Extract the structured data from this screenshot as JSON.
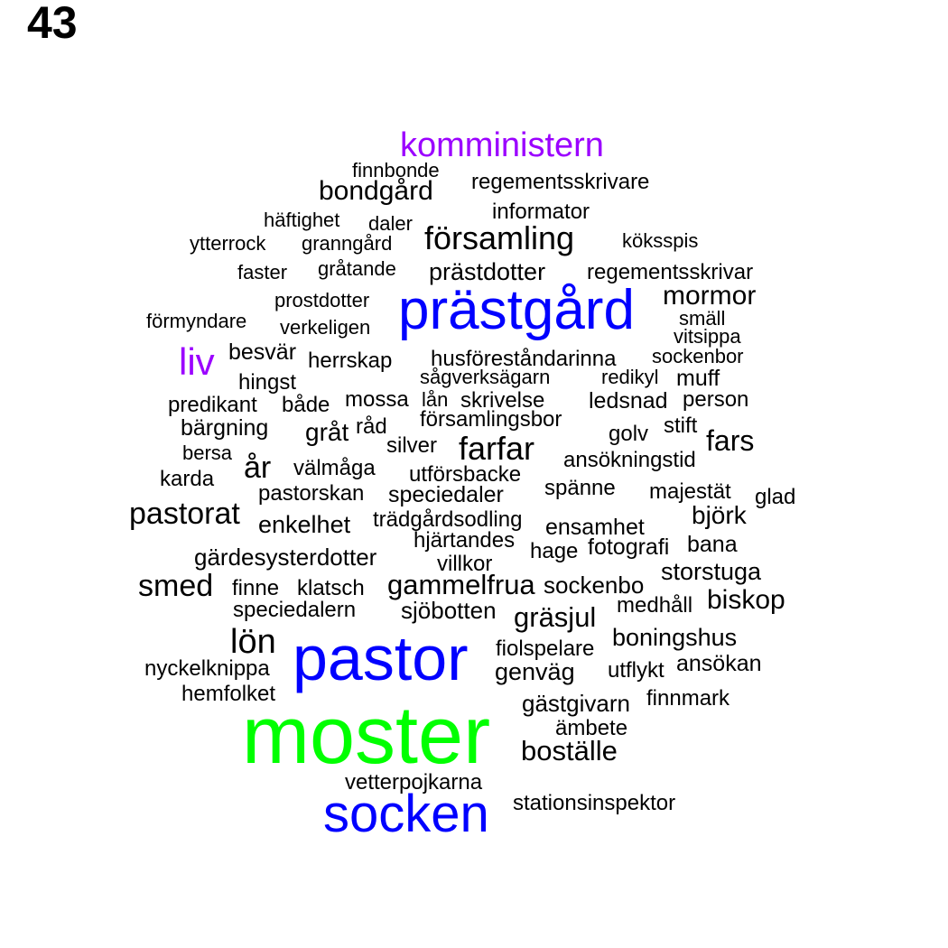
{
  "page_number": "43",
  "colors": {
    "blue": "#0000ff",
    "purple": "#9b00ff",
    "green": "#00ff00",
    "black": "#000000"
  },
  "words": [
    "komministern",
    "finnbonde",
    "regementsskrivare",
    "bondgård",
    "informator",
    "häftighet",
    "daler",
    "ytterrock",
    "granngård",
    "församling",
    "köksspis",
    "faster",
    "gråtande",
    "prästdotter",
    "regementsskrivar",
    "prostdotter",
    "prästgård",
    "mormor",
    "förmyndare",
    "verkeligen",
    "smäll",
    "vitsippa",
    "liv",
    "besvär",
    "herrskap",
    "husföreståndarinna",
    "sockenbor",
    "hingst",
    "sågverksägarn",
    "redikyl",
    "muff",
    "predikant",
    "både",
    "mossa",
    "lån",
    "skrivelse",
    "ledsnad",
    "person",
    "bärgning",
    "gråt",
    "råd",
    "församlingsbor",
    "stift",
    "golv",
    "bersa",
    "silver",
    "farfar",
    "fars",
    "år",
    "välmåga",
    "ansökningstid",
    "karda",
    "utförsbacke",
    "pastorskan",
    "speciedaler",
    "spänne",
    "majestät",
    "glad",
    "pastorat",
    "enkelhet",
    "trädgårdsodling",
    "ensamhet",
    "björk",
    "hjärtandes",
    "fotografi",
    "bana",
    "gärdesysterdotter",
    "hage",
    "villkor",
    "storstuga",
    "smed",
    "finne",
    "klatsch",
    "gammelfrua",
    "sockenbo",
    "biskop",
    "speciedalern",
    "sjöbotten",
    "medhåll",
    "gräsjul",
    "lön",
    "boningshus",
    "pastor",
    "fiolspelare",
    "nyckelknippa",
    "genväg",
    "utflykt",
    "ansökan",
    "hemfolket",
    "gästgivarn",
    "finnmark",
    "moster",
    "ämbete",
    "boställe",
    "vetterpojkarna",
    "socken",
    "stationsinspektor"
  ]
}
